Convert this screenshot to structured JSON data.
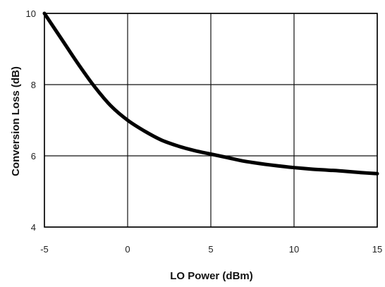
{
  "chart_data": {
    "type": "line",
    "title": "",
    "xlabel": "LO Power (dBm)",
    "ylabel": "Conversion Loss (dB)",
    "xlim": [
      -5,
      15
    ],
    "ylim": [
      4,
      10
    ],
    "xticks": [
      -5,
      0,
      5,
      10,
      15
    ],
    "yticks": [
      4,
      6,
      8,
      10
    ],
    "xtick_labels": [
      "-5",
      "0",
      "5",
      "10",
      "15"
    ],
    "ytick_labels": [
      "4",
      "6",
      "8",
      "10"
    ],
    "grid": true,
    "legend": "none",
    "series": [
      {
        "color": "#000000",
        "x": [
          -5,
          -4,
          -3,
          -2,
          -1,
          0,
          1,
          2,
          3,
          4,
          5,
          6,
          7,
          8,
          9,
          10,
          11,
          12,
          13,
          14,
          15
        ],
        "y": [
          10.0,
          9.3,
          8.6,
          7.95,
          7.4,
          7.0,
          6.7,
          6.45,
          6.28,
          6.15,
          6.05,
          5.95,
          5.85,
          5.78,
          5.72,
          5.67,
          5.63,
          5.6,
          5.57,
          5.53,
          5.5
        ]
      }
    ]
  }
}
